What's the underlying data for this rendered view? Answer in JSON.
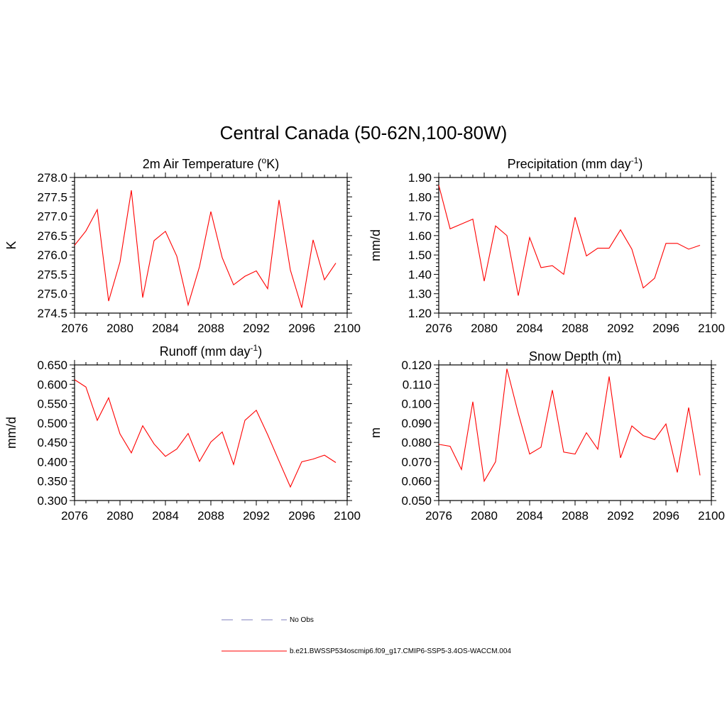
{
  "figure": {
    "title": "Central Canada (50-62N,100-80W)"
  },
  "colors": {
    "series": "#ff0000",
    "obs": "#9999cc",
    "axis": "#000000"
  },
  "legend": {
    "items": [
      {
        "label": "No Obs",
        "style": "dashed"
      },
      {
        "label": "b.e21.BWSSP534oscmip6.f09_g17.CMIP6-SSP5-3.4OS-WACCM.004",
        "style": "solid"
      }
    ]
  },
  "chart_data": [
    {
      "type": "line",
      "title": "2m Air Temperature (oK)",
      "title_parts": [
        "2m Air Temperature (",
        "o",
        "K)"
      ],
      "title_sup_index": 1,
      "ylabel": "K",
      "xlim": [
        2076,
        2100
      ],
      "ylim": [
        274.5,
        278.0
      ],
      "x_ticks": [
        "2076",
        "2080",
        "2084",
        "2088",
        "2092",
        "2096",
        "2100"
      ],
      "y_ticks": [
        "274.5",
        "275.0",
        "275.5",
        "276.0",
        "276.5",
        "277.0",
        "277.5",
        "278.0"
      ],
      "x": [
        2076,
        2077,
        2078,
        2079,
        2080,
        2081,
        2082,
        2083,
        2084,
        2085,
        2086,
        2087,
        2088,
        2089,
        2090,
        2091,
        2092,
        2093,
        2094,
        2095,
        2096,
        2097,
        2098,
        2099
      ],
      "values": [
        276.25,
        276.62,
        277.17,
        274.81,
        275.82,
        277.67,
        274.9,
        276.37,
        276.61,
        275.97,
        274.71,
        275.7,
        277.12,
        275.93,
        275.23,
        275.45,
        275.59,
        275.13,
        277.42,
        275.61,
        274.64,
        276.39,
        275.36,
        275.79
      ]
    },
    {
      "type": "line",
      "title": "Precipitation (mm day-1)",
      "title_parts": [
        "Precipitation (mm day",
        "-1",
        ")"
      ],
      "title_sup_index": 1,
      "ylabel": "mm/d",
      "xlim": [
        2076,
        2100
      ],
      "ylim": [
        1.2,
        1.9
      ],
      "x_ticks": [
        "2076",
        "2080",
        "2084",
        "2088",
        "2092",
        "2096",
        "2100"
      ],
      "y_ticks": [
        "1.20",
        "1.30",
        "1.40",
        "1.50",
        "1.60",
        "1.70",
        "1.80",
        "1.90"
      ],
      "x": [
        2076,
        2077,
        2078,
        2079,
        2080,
        2081,
        2082,
        2083,
        2084,
        2085,
        2086,
        2087,
        2088,
        2089,
        2090,
        2091,
        2092,
        2093,
        2094,
        2095,
        2096,
        2097,
        2098,
        2099
      ],
      "values": [
        1.86,
        1.635,
        1.66,
        1.685,
        1.365,
        1.65,
        1.6,
        1.29,
        1.59,
        1.435,
        1.445,
        1.4,
        1.695,
        1.495,
        1.535,
        1.535,
        1.63,
        1.53,
        1.33,
        1.38,
        1.56,
        1.56,
        1.53,
        1.55
      ]
    },
    {
      "type": "line",
      "title": "Runoff (mm day-1)",
      "title_parts": [
        "Runoff (mm day",
        "-1",
        ")"
      ],
      "title_sup_index": 1,
      "ylabel": "mm/d",
      "xlim": [
        2076,
        2100
      ],
      "ylim": [
        0.3,
        0.65
      ],
      "x_ticks": [
        "2076",
        "2080",
        "2084",
        "2088",
        "2092",
        "2096",
        "2100"
      ],
      "y_ticks": [
        "0.300",
        "0.350",
        "0.400",
        "0.450",
        "0.500",
        "0.550",
        "0.600",
        "0.650"
      ],
      "x": [
        2076,
        2077,
        2078,
        2079,
        2080,
        2081,
        2082,
        2083,
        2084,
        2085,
        2086,
        2087,
        2088,
        2089,
        2090,
        2091,
        2092,
        2093,
        2094,
        2095,
        2096,
        2097,
        2098,
        2099
      ],
      "values": [
        0.612,
        0.593,
        0.507,
        0.565,
        0.472,
        0.423,
        0.493,
        0.446,
        0.414,
        0.433,
        0.473,
        0.401,
        0.451,
        0.477,
        0.393,
        0.507,
        0.533,
        0.47,
        0.402,
        0.335,
        0.4,
        0.407,
        0.417,
        0.398
      ]
    },
    {
      "type": "line",
      "title": "Snow Depth (m)",
      "title_parts": [
        "Snow Depth (m)"
      ],
      "title_sup_index": -1,
      "ylabel": "m",
      "xlim": [
        2076,
        2100
      ],
      "ylim": [
        0.05,
        0.12
      ],
      "x_ticks": [
        "2076",
        "2080",
        "2084",
        "2088",
        "2092",
        "2096",
        "2100"
      ],
      "y_ticks": [
        "0.050",
        "0.060",
        "0.070",
        "0.080",
        "0.090",
        "0.100",
        "0.110",
        "0.120"
      ],
      "x": [
        2076,
        2077,
        2078,
        2079,
        2080,
        2081,
        2082,
        2083,
        2084,
        2085,
        2086,
        2087,
        2088,
        2089,
        2090,
        2091,
        2092,
        2093,
        2094,
        2095,
        2096,
        2097,
        2098,
        2099
      ],
      "values": [
        0.079,
        0.078,
        0.066,
        0.101,
        0.06,
        0.07,
        0.118,
        0.095,
        0.074,
        0.0775,
        0.107,
        0.075,
        0.074,
        0.085,
        0.0765,
        0.114,
        0.072,
        0.0885,
        0.0835,
        0.0815,
        0.0895,
        0.0645,
        0.098,
        0.063
      ]
    }
  ]
}
